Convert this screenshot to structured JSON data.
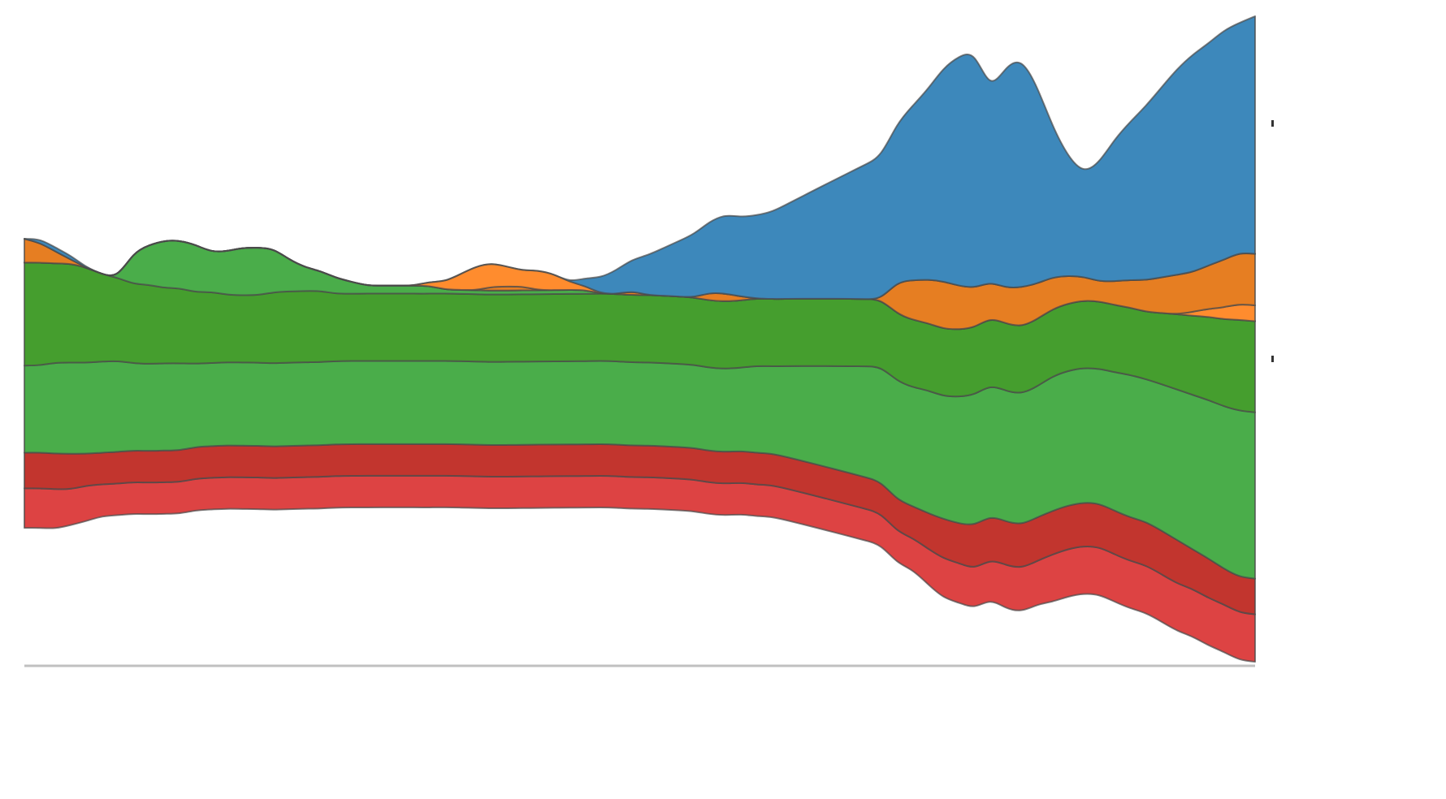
{
  "chart_data": {
    "type": "area",
    "stacked": true,
    "offset": "wiggle",
    "smoothing": "basis",
    "title": "",
    "xlabel": "",
    "ylabel": "",
    "legend": "none",
    "grid": false,
    "x": [
      0,
      1,
      2,
      3,
      4,
      5,
      6,
      7,
      8,
      9,
      10,
      11,
      12,
      13,
      14,
      15,
      16,
      17,
      18,
      19,
      20,
      21,
      22,
      23,
      24,
      25,
      26,
      27,
      28,
      29,
      30,
      31,
      32,
      33,
      34,
      35,
      36,
      37,
      38,
      39,
      40,
      41,
      42,
      43,
      44,
      45,
      46,
      47,
      48,
      49,
      50,
      51,
      52,
      53,
      54,
      55,
      56,
      57,
      58,
      59,
      60,
      61,
      62,
      63,
      64,
      65,
      66,
      67,
      68,
      69,
      70,
      71,
      72,
      73,
      74,
      75,
      76,
      77,
      78,
      79
    ],
    "series": [
      {
        "color": "#dd4343",
        "values": [
          10,
          10,
          10,
          9,
          9,
          8,
          8,
          8,
          8,
          8,
          8,
          8,
          8,
          8,
          8,
          8,
          8,
          8,
          8,
          8,
          8,
          8,
          8,
          8,
          8,
          8,
          8,
          8,
          8,
          8,
          8,
          8,
          8,
          8,
          8,
          8,
          8,
          8,
          8,
          8,
          8,
          8,
          8,
          8,
          8,
          8,
          8,
          8,
          8,
          8,
          8,
          8,
          8,
          8,
          8,
          8,
          8,
          8,
          9,
          10,
          10,
          10,
          10,
          11,
          11,
          11,
          12,
          12,
          12,
          12,
          12,
          12,
          12,
          12,
          12,
          12,
          12,
          12,
          12,
          12
        ]
      },
      {
        "color": "#c2352e",
        "values": [
          9,
          9,
          9,
          9,
          8,
          8,
          8,
          8,
          8,
          8,
          8,
          8,
          8,
          8,
          8,
          8,
          8,
          8,
          8,
          8,
          8,
          8,
          8,
          8,
          8,
          8,
          8,
          8,
          8,
          8,
          8,
          8,
          8,
          8,
          8,
          8,
          8,
          8,
          8,
          8,
          8,
          8,
          8,
          8,
          8,
          8,
          8,
          8,
          8,
          8,
          8,
          8,
          8,
          8,
          8,
          8,
          8,
          8,
          9,
          10,
          10,
          11,
          11,
          11,
          11,
          11,
          11,
          11,
          11,
          11,
          11,
          11,
          11,
          11,
          11,
          10,
          10,
          9,
          9,
          9
        ]
      },
      {
        "color": "#4aad4a",
        "values": [
          22,
          22,
          23,
          23,
          23,
          23,
          23,
          22,
          22,
          22,
          22,
          21,
          21,
          21,
          21,
          21,
          21,
          21,
          21,
          21,
          21,
          21,
          21,
          21,
          21,
          21,
          21,
          21,
          21,
          21,
          21,
          21,
          21,
          21,
          21,
          21,
          21,
          21,
          21,
          21,
          21,
          21,
          21,
          21,
          21,
          21,
          21,
          22,
          22,
          23,
          24,
          25,
          26,
          27,
          28,
          29,
          30,
          30,
          31,
          31,
          32,
          33,
          33,
          33,
          33,
          33,
          34,
          34,
          34,
          34,
          35,
          36,
          36,
          37,
          38,
          39,
          40,
          41,
          42,
          42
        ]
      },
      {
        "color": "#459e2e",
        "values": [
          26,
          26,
          25,
          25,
          24,
          22,
          21,
          20,
          20,
          19,
          19,
          18,
          18,
          17,
          17,
          17,
          18,
          18,
          18,
          18,
          17,
          17,
          17,
          17,
          17,
          17,
          17,
          17,
          17,
          17,
          17,
          17,
          17,
          17,
          17,
          17,
          17,
          17,
          17,
          17,
          17,
          17,
          17,
          17,
          17,
          17,
          17,
          17,
          17,
          17,
          17,
          17,
          17,
          17,
          17,
          17,
          17,
          17,
          17,
          17,
          17,
          17,
          17,
          17,
          17,
          17,
          17,
          17,
          17,
          17,
          17,
          17,
          17,
          18,
          19,
          20,
          21,
          22,
          23,
          23
        ]
      },
      {
        "color": "#4aad4a",
        "values": [
          0,
          0,
          0,
          0,
          0,
          0,
          0,
          8,
          10,
          12,
          12,
          12,
          10,
          11,
          12,
          12,
          11,
          8,
          6,
          5,
          4,
          3,
          2,
          2,
          2,
          2,
          2,
          1,
          1,
          1,
          1,
          1,
          1,
          1,
          1,
          1,
          1,
          0,
          0,
          0,
          0,
          0,
          0,
          0,
          0,
          0,
          0,
          0,
          0,
          0,
          0,
          0,
          0,
          0,
          0,
          0,
          0,
          0,
          0,
          0,
          0,
          0,
          0,
          0,
          0,
          0,
          0,
          0,
          0,
          0,
          0,
          0,
          0,
          0,
          0,
          0,
          0,
          0,
          0,
          0
        ]
      },
      {
        "color": "#ff8c2e",
        "values": [
          0,
          0,
          0,
          0,
          0,
          0,
          0,
          0,
          0,
          0,
          0,
          0,
          0,
          0,
          0,
          0,
          0,
          0,
          0,
          0,
          0,
          0,
          0,
          0,
          0,
          0,
          0,
          0,
          0,
          0,
          0,
          0,
          0,
          0,
          0,
          0,
          0,
          0,
          0,
          0,
          0,
          0,
          0,
          0,
          0,
          0,
          0,
          0,
          0,
          0,
          0,
          0,
          0,
          0,
          0,
          0,
          0,
          0,
          0,
          0,
          0,
          0,
          0,
          0,
          0,
          0,
          0,
          0,
          0,
          0,
          0,
          0,
          0,
          0,
          0,
          1,
          2,
          3,
          4,
          4
        ]
      },
      {
        "color": "#e67e22",
        "values": [
          6,
          5,
          3,
          1,
          0,
          0,
          0,
          0,
          0,
          0,
          0,
          0,
          0,
          0,
          0,
          0,
          0,
          0,
          0,
          0,
          0,
          0,
          0,
          0,
          0,
          0,
          0,
          0,
          0,
          0,
          1,
          1,
          1,
          0,
          0,
          0,
          0,
          0,
          0,
          1,
          0,
          0,
          0,
          0,
          2,
          2,
          1,
          0,
          0,
          0,
          0,
          0,
          0,
          0,
          0,
          0,
          8,
          10,
          11,
          12,
          11,
          10,
          9,
          9,
          10,
          9,
          8,
          7,
          6,
          5,
          6,
          7,
          8,
          9,
          10,
          10,
          11,
          12,
          13,
          13
        ]
      },
      {
        "color": "#ff8c2e",
        "values": [
          0,
          0,
          0,
          0,
          0,
          0,
          0,
          0,
          0,
          0,
          0,
          0,
          0,
          0,
          0,
          0,
          0,
          0,
          0,
          0,
          0,
          0,
          0,
          0,
          0,
          0,
          1,
          2,
          4,
          6,
          6,
          5,
          4,
          5,
          4,
          2,
          1,
          0,
          0,
          0,
          0,
          0,
          0,
          0,
          0,
          0,
          0,
          0,
          0,
          0,
          0,
          0,
          0,
          0,
          0,
          0,
          0,
          0,
          0,
          0,
          0,
          0,
          0,
          0,
          0,
          0,
          0,
          0,
          0,
          0,
          0,
          0,
          0,
          0,
          0,
          0,
          0,
          0,
          0,
          0
        ]
      },
      {
        "color": "#3d88bb",
        "values": [
          0,
          1,
          1,
          1,
          0,
          0,
          0,
          0,
          0,
          0,
          0,
          0,
          0,
          0,
          0,
          0,
          0,
          0,
          0,
          0,
          0,
          0,
          0,
          0,
          0,
          0,
          0,
          0,
          0,
          0,
          0,
          0,
          0,
          0,
          0,
          0,
          2,
          4,
          6,
          8,
          10,
          12,
          14,
          16,
          18,
          20,
          20,
          21,
          22,
          24,
          26,
          28,
          30,
          32,
          34,
          36,
          40,
          44,
          48,
          54,
          58,
          60,
          48,
          56,
          58,
          50,
          38,
          30,
          26,
          30,
          36,
          40,
          44,
          48,
          52,
          55,
          56,
          58,
          58,
          60
        ]
      }
    ]
  }
}
